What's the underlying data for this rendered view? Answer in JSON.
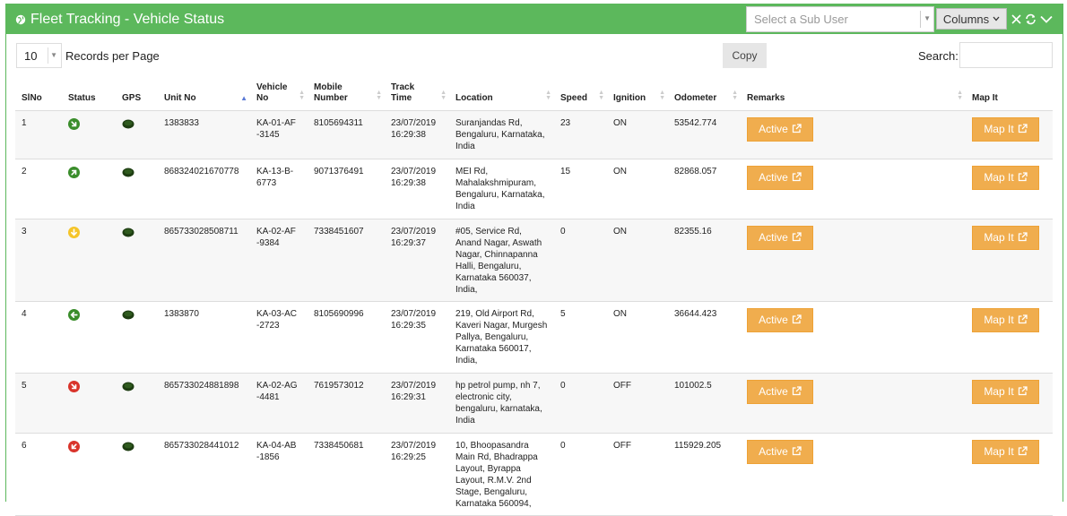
{
  "header": {
    "title": "Fleet Tracking - Vehicle Status",
    "subuser_placeholder": "Select a Sub User",
    "columns_label": "Columns",
    "icons": [
      "globe-icon",
      "close-icon",
      "refresh-icon",
      "chevron-down-icon"
    ],
    "bg_color": "#5cb85c"
  },
  "toolbar": {
    "records_per_page_value": "10",
    "records_per_page_label": "Records per Page",
    "copy_label": "Copy",
    "search_label": "Search:",
    "search_value": ""
  },
  "table": {
    "columns": [
      "SlNo",
      "Status",
      "GPS",
      "Unit No",
      "Vehicle No",
      "Mobile Number",
      "Track Time",
      "Location",
      "Speed",
      "Ignition",
      "Odometer",
      "Remarks",
      "Map It"
    ],
    "sorted_column": "Unit No",
    "rows": [
      {
        "slno": "1",
        "status": "moving-down-right",
        "status_color": "#3a8d2b",
        "unit": "1383833",
        "vehicle": "KA-01-AF-3145",
        "mobile": "8105694311",
        "time": "23/07/2019 16:29:38",
        "location": "Suranjandas Rd, Bengaluru, Karnataka, India",
        "speed": "23",
        "ignition": "ON",
        "odometer": "53542.774",
        "remarks": "Active",
        "map": "Map It"
      },
      {
        "slno": "2",
        "status": "moving-up-right",
        "status_color": "#3a8d2b",
        "unit": "868324021670778",
        "vehicle": "KA-13-B-6773",
        "mobile": "9071376491",
        "time": "23/07/2019 16:29:38",
        "location": "MEI Rd, Mahalakshmipuram, Bengaluru, Karnataka, India",
        "speed": "15",
        "ignition": "ON",
        "odometer": "82868.057",
        "remarks": "Active",
        "map": "Map It"
      },
      {
        "slno": "3",
        "status": "idle-down",
        "status_color": "#f5c52a",
        "unit": "865733028508711",
        "vehicle": "KA-02-AF-9384",
        "mobile": "7338451607",
        "time": "23/07/2019 16:29:37",
        "location": "#05, Service Rd, Anand Nagar, Aswath Nagar, Chinnapanna Halli, Bengaluru, Karnataka 560037, India,",
        "speed": "0",
        "ignition": "ON",
        "odometer": "82355.16",
        "remarks": "Active",
        "map": "Map It"
      },
      {
        "slno": "4",
        "status": "moving-left",
        "status_color": "#3a8d2b",
        "unit": "1383870",
        "vehicle": "KA-03-AC-2723",
        "mobile": "8105690996",
        "time": "23/07/2019 16:29:35",
        "location": "219, Old Airport Rd, Kaveri Nagar, Murgesh Pallya, Bengaluru, Karnataka 560017, India,",
        "speed": "5",
        "ignition": "ON",
        "odometer": "36644.423",
        "remarks": "Active",
        "map": "Map It"
      },
      {
        "slno": "5",
        "status": "stopped-down-right",
        "status_color": "#d9342b",
        "unit": "865733024881898",
        "vehicle": "KA-02-AG-4481",
        "mobile": "7619573012",
        "time": "23/07/2019 16:29:31",
        "location": "hp petrol pump, nh 7, electronic city, bengaluru, karnataka, India",
        "speed": "0",
        "ignition": "OFF",
        "odometer": "101002.5",
        "remarks": "Active",
        "map": "Map It"
      },
      {
        "slno": "6",
        "status": "stopped-down-left",
        "status_color": "#d9342b",
        "unit": "865733028441012",
        "vehicle": "KA-04-AB-1856",
        "mobile": "7338450681",
        "time": "23/07/2019 16:29:25",
        "location": "10, Bhoopasandra Main Rd, Bhadrappa Layout, Byrappa Layout, R.M.V. 2nd Stage, Bengaluru, Karnataka 560094,",
        "speed": "0",
        "ignition": "OFF",
        "odometer": "115929.205",
        "remarks": "Active",
        "map": "Map It"
      }
    ]
  },
  "colors": {
    "accent": "#5cb85c",
    "button": "#f0ad4e",
    "gps": "#1e3d12"
  }
}
